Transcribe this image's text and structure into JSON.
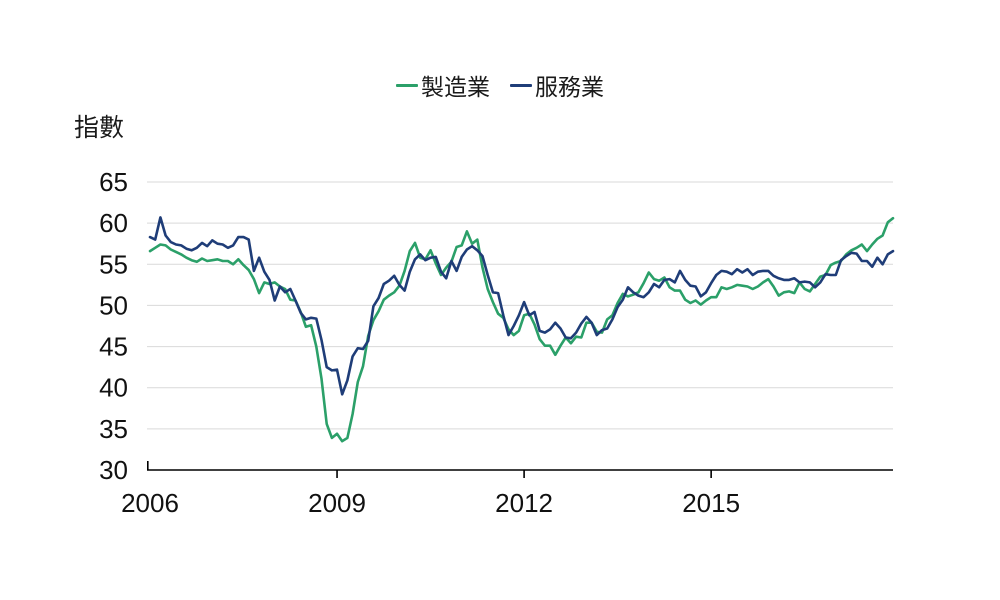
{
  "y_axis_title": "指數",
  "legend": {
    "items": [
      {
        "label": "製造業",
        "color": "#2BA069"
      },
      {
        "label": "服務業",
        "color": "#1F3D78"
      }
    ]
  },
  "colors": {
    "manufacturing": "#2BA069",
    "services": "#1F3D78",
    "gridline": "#d9d9d9",
    "axis": "#000000"
  },
  "chart_data": {
    "type": "line",
    "title": "",
    "ylabel": "指數",
    "xlabel": "",
    "x_start": "2006-01",
    "x_frequency": "monthly",
    "x_ticks": [
      2006,
      2009,
      2012,
      2015
    ],
    "y_ticks": [
      30,
      35,
      40,
      45,
      50,
      55,
      60,
      65
    ],
    "ylim": [
      30,
      65
    ],
    "grid": "horizontal",
    "legend_position": "top-center",
    "series": [
      {
        "name": "製造業",
        "color": "#2BA069",
        "values": [
          56.6,
          57.0,
          57.4,
          57.3,
          56.8,
          56.5,
          56.2,
          55.8,
          55.5,
          55.3,
          55.7,
          55.4,
          55.5,
          55.6,
          55.4,
          55.4,
          55.0,
          55.6,
          54.9,
          54.3,
          53.2,
          51.5,
          52.8,
          52.6,
          52.8,
          52.3,
          52.0,
          50.7,
          50.6,
          49.2,
          47.4,
          47.6,
          45.0,
          41.1,
          35.6,
          33.9,
          34.4,
          33.5,
          33.9,
          36.8,
          40.7,
          42.6,
          46.3,
          48.2,
          49.3,
          50.7,
          51.2,
          51.6,
          52.4,
          54.2,
          56.6,
          57.6,
          55.8,
          55.6,
          56.7,
          55.1,
          53.7,
          54.6,
          55.3,
          57.1,
          57.3,
          59.0,
          57.5,
          58.0,
          54.6,
          52.0,
          50.4,
          49.0,
          48.5,
          47.1,
          46.4,
          46.9,
          48.8,
          49.0,
          47.7,
          45.9,
          45.1,
          45.1,
          44.0,
          45.1,
          46.1,
          45.4,
          46.2,
          46.1,
          47.9,
          47.9,
          46.8,
          46.7,
          48.3,
          48.8,
          50.3,
          51.4,
          51.1,
          51.3,
          51.6,
          52.7,
          54.0,
          53.2,
          53.0,
          53.4,
          52.2,
          51.8,
          51.8,
          50.7,
          50.3,
          50.6,
          50.1,
          50.6,
          51.0,
          51.0,
          52.2,
          52.0,
          52.2,
          52.5,
          52.4,
          52.3,
          52.0,
          52.3,
          52.8,
          53.2,
          52.3,
          51.2,
          51.6,
          51.7,
          51.5,
          52.8,
          52.0,
          51.7,
          52.6,
          53.5,
          53.7,
          54.9,
          55.2,
          55.4,
          56.2,
          56.7,
          57.0,
          57.4,
          56.6,
          57.4,
          58.1,
          58.5,
          60.1,
          60.6
        ]
      },
      {
        "name": "服務業",
        "color": "#1F3D78",
        "values": [
          58.3,
          58.0,
          60.7,
          58.5,
          57.7,
          57.4,
          57.3,
          56.9,
          56.7,
          57.0,
          57.6,
          57.2,
          57.9,
          57.5,
          57.4,
          57.0,
          57.3,
          58.3,
          58.3,
          58.0,
          54.2,
          55.8,
          54.1,
          53.1,
          50.6,
          52.3,
          51.6,
          52.0,
          50.6,
          49.1,
          48.3,
          48.5,
          48.4,
          45.8,
          42.5,
          42.1,
          42.2,
          39.2,
          40.9,
          43.8,
          44.8,
          44.7,
          45.7,
          49.9,
          50.9,
          52.6,
          53.0,
          53.6,
          52.5,
          51.8,
          54.1,
          55.6,
          56.2,
          55.5,
          55.8,
          55.9,
          54.1,
          53.3,
          55.4,
          54.2,
          55.9,
          56.8,
          57.2,
          56.7,
          56.0,
          53.7,
          51.6,
          51.5,
          48.8,
          46.4,
          47.5,
          48.8,
          50.4,
          48.8,
          49.2,
          46.9,
          46.7,
          47.1,
          47.9,
          47.2,
          46.1,
          46.0,
          46.7,
          47.8,
          48.6,
          47.9,
          46.4,
          47.0,
          47.2,
          48.3,
          49.8,
          50.7,
          52.2,
          51.6,
          51.2,
          51.0,
          51.6,
          52.6,
          52.2,
          53.1,
          53.2,
          52.8,
          54.2,
          53.1,
          52.4,
          52.3,
          51.1,
          51.6,
          52.7,
          53.7,
          54.2,
          54.1,
          53.8,
          54.4,
          54.0,
          54.4,
          53.7,
          54.1,
          54.2,
          54.2,
          53.6,
          53.3,
          53.1,
          53.1,
          53.3,
          52.8,
          52.9,
          52.8,
          52.2,
          52.8,
          53.8,
          53.7,
          53.7,
          55.5,
          56.0,
          56.4,
          56.3,
          55.4,
          55.4,
          54.7,
          55.8,
          55.0,
          56.2,
          56.6
        ]
      }
    ]
  }
}
